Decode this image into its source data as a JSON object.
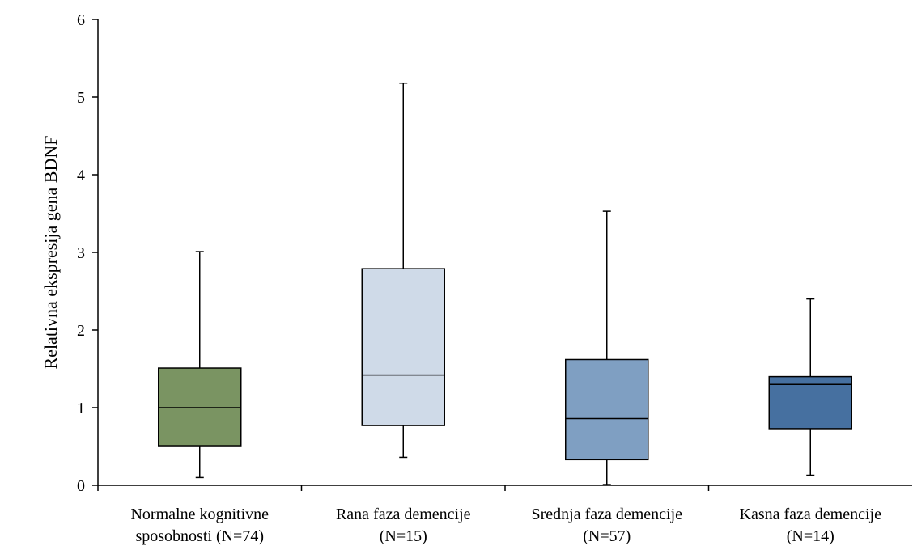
{
  "chart_data": {
    "type": "boxplot",
    "title": "",
    "xlabel": "",
    "ylabel": "Relativna ekspresija gena BDNF",
    "ylim": [
      0,
      6
    ],
    "yticks": [
      "0",
      "1",
      "2",
      "3",
      "4",
      "5",
      "6"
    ],
    "grid": false,
    "legend": "none",
    "categories": [
      {
        "line1": "Normalne kognitivne",
        "line2": "sposobnosti (N=74)"
      },
      {
        "line1": "Rana faza demencije",
        "line2": "(N=15)"
      },
      {
        "line1": "Srednja faza demencije",
        "line2": "(N=57)"
      },
      {
        "line1": "Kasna faza demencije",
        "line2": "(N=14)"
      }
    ],
    "boxes": [
      {
        "min": 0.1,
        "q1": 0.51,
        "median": 1.0,
        "q3": 1.51,
        "max": 3.01,
        "color": "#7a9462"
      },
      {
        "min": 0.36,
        "q1": 0.77,
        "median": 1.42,
        "q3": 2.79,
        "max": 5.18,
        "color": "#cfdae8"
      },
      {
        "min": 0.01,
        "q1": 0.33,
        "median": 0.86,
        "q3": 1.62,
        "max": 3.53,
        "color": "#7f9fc2"
      },
      {
        "min": 0.13,
        "q1": 0.73,
        "median": 1.3,
        "q3": 1.4,
        "max": 2.4,
        "color": "#4670a0"
      }
    ]
  }
}
